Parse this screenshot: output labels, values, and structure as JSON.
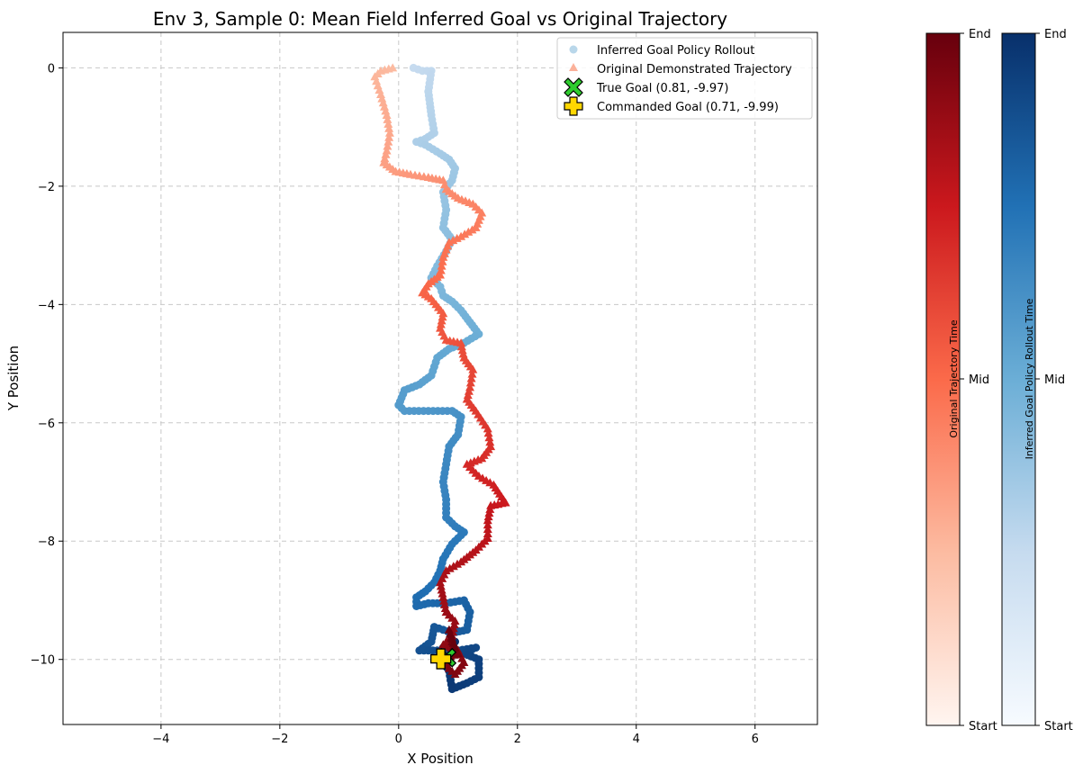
{
  "chart_data": {
    "type": "scatter",
    "title": "Env 3, Sample 0: Mean Field Inferred Goal vs Original Trajectory",
    "xlabel": "X Position",
    "ylabel": "Y Position",
    "xlim": [
      -5.65,
      7.05
    ],
    "ylim": [
      -11.1,
      0.6
    ],
    "xticks": [
      -4,
      -2,
      0,
      2,
      4,
      6
    ],
    "yticks": [
      0,
      -2,
      -4,
      -6,
      -8,
      -10
    ],
    "grid": true,
    "legend_position": "top-right",
    "series": [
      {
        "name": "Inferred Goal Policy Rollout",
        "marker": "circle",
        "colormap": "Blues",
        "path": [
          [
            0.25,
            0.0
          ],
          [
            0.4,
            -0.05
          ],
          [
            0.55,
            -0.05
          ],
          [
            0.5,
            -0.4
          ],
          [
            0.55,
            -0.8
          ],
          [
            0.6,
            -1.1
          ],
          [
            0.45,
            -1.2
          ],
          [
            0.3,
            -1.25
          ],
          [
            0.45,
            -1.3
          ],
          [
            0.7,
            -1.45
          ],
          [
            0.85,
            -1.55
          ],
          [
            0.95,
            -1.7
          ],
          [
            0.9,
            -1.9
          ],
          [
            0.75,
            -2.1
          ],
          [
            0.8,
            -2.4
          ],
          [
            0.75,
            -2.7
          ],
          [
            0.9,
            -2.9
          ],
          [
            0.8,
            -3.1
          ],
          [
            0.65,
            -3.35
          ],
          [
            0.55,
            -3.55
          ],
          [
            0.7,
            -3.7
          ],
          [
            0.75,
            -3.85
          ],
          [
            0.9,
            -3.95
          ],
          [
            1.05,
            -4.1
          ],
          [
            1.2,
            -4.3
          ],
          [
            1.35,
            -4.5
          ],
          [
            1.1,
            -4.65
          ],
          [
            0.85,
            -4.75
          ],
          [
            0.65,
            -4.9
          ],
          [
            0.55,
            -5.2
          ],
          [
            0.35,
            -5.35
          ],
          [
            0.1,
            -5.45
          ],
          [
            0.0,
            -5.7
          ],
          [
            0.1,
            -5.8
          ],
          [
            0.5,
            -5.8
          ],
          [
            0.9,
            -5.8
          ],
          [
            1.05,
            -5.9
          ],
          [
            1.0,
            -6.2
          ],
          [
            0.85,
            -6.4
          ],
          [
            0.8,
            -6.7
          ],
          [
            0.75,
            -7.0
          ],
          [
            0.8,
            -7.3
          ],
          [
            0.8,
            -7.6
          ],
          [
            0.95,
            -7.75
          ],
          [
            1.1,
            -7.85
          ],
          [
            0.9,
            -8.05
          ],
          [
            0.75,
            -8.3
          ],
          [
            0.7,
            -8.5
          ],
          [
            0.6,
            -8.7
          ],
          [
            0.45,
            -8.85
          ],
          [
            0.3,
            -8.95
          ],
          [
            0.3,
            -9.1
          ],
          [
            0.5,
            -9.05
          ],
          [
            0.8,
            -9.05
          ],
          [
            1.1,
            -9.0
          ],
          [
            1.2,
            -9.2
          ],
          [
            1.15,
            -9.5
          ],
          [
            0.9,
            -9.55
          ],
          [
            0.6,
            -9.45
          ],
          [
            0.55,
            -9.7
          ],
          [
            0.35,
            -9.85
          ],
          [
            0.65,
            -9.85
          ],
          [
            1.0,
            -9.85
          ],
          [
            1.3,
            -9.8
          ],
          [
            1.1,
            -9.9
          ],
          [
            1.35,
            -10.0
          ],
          [
            1.35,
            -10.3
          ],
          [
            1.15,
            -10.4
          ],
          [
            0.9,
            -10.5
          ],
          [
            0.85,
            -10.2
          ],
          [
            0.7,
            -9.95
          ],
          [
            0.75,
            -9.8
          ],
          [
            0.95,
            -9.7
          ]
        ]
      },
      {
        "name": "Original Demonstrated Trajectory",
        "marker": "triangle",
        "colormap": "Reds",
        "path": [
          [
            -0.1,
            0.0
          ],
          [
            -0.3,
            -0.05
          ],
          [
            -0.4,
            -0.15
          ],
          [
            -0.3,
            -0.45
          ],
          [
            -0.2,
            -0.8
          ],
          [
            -0.15,
            -1.1
          ],
          [
            -0.2,
            -1.4
          ],
          [
            -0.25,
            -1.6
          ],
          [
            -0.05,
            -1.75
          ],
          [
            0.2,
            -1.8
          ],
          [
            0.5,
            -1.85
          ],
          [
            0.75,
            -1.9
          ],
          [
            0.8,
            -2.05
          ],
          [
            1.0,
            -2.2
          ],
          [
            1.25,
            -2.3
          ],
          [
            1.4,
            -2.45
          ],
          [
            1.3,
            -2.7
          ],
          [
            1.05,
            -2.85
          ],
          [
            0.85,
            -2.95
          ],
          [
            0.75,
            -3.2
          ],
          [
            0.7,
            -3.5
          ],
          [
            0.5,
            -3.65
          ],
          [
            0.4,
            -3.8
          ],
          [
            0.55,
            -3.9
          ],
          [
            0.75,
            -4.15
          ],
          [
            0.7,
            -4.4
          ],
          [
            0.8,
            -4.6
          ],
          [
            1.05,
            -4.65
          ],
          [
            1.1,
            -4.9
          ],
          [
            1.25,
            -5.1
          ],
          [
            1.2,
            -5.4
          ],
          [
            1.15,
            -5.6
          ],
          [
            1.3,
            -5.8
          ],
          [
            1.5,
            -6.1
          ],
          [
            1.55,
            -6.4
          ],
          [
            1.4,
            -6.6
          ],
          [
            1.15,
            -6.7
          ],
          [
            1.35,
            -6.9
          ],
          [
            1.6,
            -7.05
          ],
          [
            1.7,
            -7.2
          ],
          [
            1.8,
            -7.35
          ],
          [
            1.55,
            -7.4
          ],
          [
            1.5,
            -7.65
          ],
          [
            1.5,
            -7.95
          ],
          [
            1.3,
            -8.15
          ],
          [
            1.05,
            -8.35
          ],
          [
            0.8,
            -8.5
          ],
          [
            0.7,
            -8.7
          ],
          [
            0.75,
            -8.95
          ],
          [
            0.8,
            -9.2
          ],
          [
            0.95,
            -9.35
          ],
          [
            0.9,
            -9.6
          ],
          [
            0.75,
            -9.75
          ],
          [
            1.0,
            -9.85
          ],
          [
            1.1,
            -10.05
          ],
          [
            0.95,
            -10.25
          ],
          [
            0.85,
            -10.15
          ],
          [
            0.75,
            -10.0
          ],
          [
            1.0,
            -9.9
          ],
          [
            0.9,
            -9.7
          ],
          [
            0.85,
            -9.5
          ],
          [
            0.95,
            -9.8
          ]
        ]
      }
    ],
    "markers": [
      {
        "name": "True Goal (0.81, -9.97)",
        "x": 0.81,
        "y": -9.97,
        "shape": "X",
        "color": "#2ecc2e"
      },
      {
        "name": "Commanded Goal (0.71, -9.99)",
        "x": 0.71,
        "y": -9.99,
        "shape": "P",
        "color": "#ffd700"
      }
    ],
    "colorbars": [
      {
        "label": "Original Trajectory Time",
        "colormap": "Reds",
        "ticks": [
          "Start",
          "Mid",
          "End"
        ]
      },
      {
        "label": "Inferred Goal Policy Rollout Time",
        "colormap": "Blues",
        "ticks": [
          "Start",
          "Mid",
          "End"
        ]
      }
    ]
  }
}
